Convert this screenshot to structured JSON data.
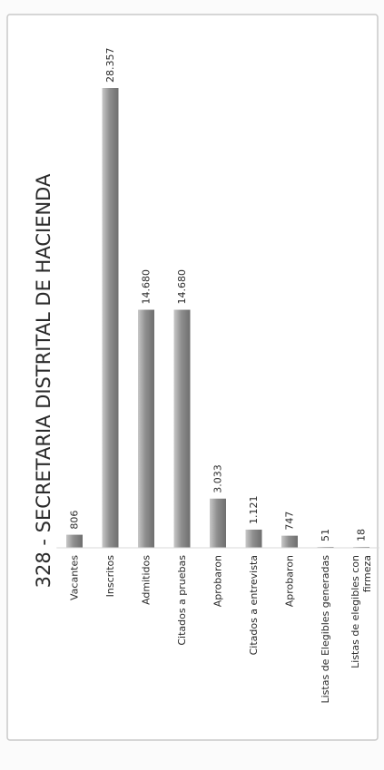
{
  "colors": {
    "page": "#fbfbfb",
    "card": "#ffffff",
    "card_border": "#c9c9c9",
    "bar": "#8f8f8f",
    "bar_light": "#c8c8c8",
    "bar_dark": "#6e6e6e",
    "text": "#2a2a2a"
  },
  "chart_data": {
    "type": "bar",
    "orientation": "column",
    "display_rotation": "rotated 90 degrees counter-clockwise",
    "title": "328 - SECRETARIA DISTRITAL DE HACIENDA",
    "categories": [
      [
        "Vacantes"
      ],
      [
        "Inscritos"
      ],
      [
        "Admitidos"
      ],
      [
        "Citados a pruebas"
      ],
      [
        "Aprobaron"
      ],
      [
        "Citados a entrevista"
      ],
      [
        "Aprobaron"
      ],
      [
        "Listas de Elegibles generadas"
      ],
      [
        "Listas de elegibles con",
        "firmeza"
      ]
    ],
    "values": [
      806,
      28357,
      14680,
      14680,
      3033,
      1121,
      747,
      51,
      18
    ],
    "data_labels": [
      "806",
      "28.357",
      "14.680",
      "14.680",
      "3.033",
      "1.121",
      "747",
      "51",
      "18"
    ],
    "ylim": [
      0,
      28357
    ],
    "grid": false,
    "legend": "none"
  }
}
